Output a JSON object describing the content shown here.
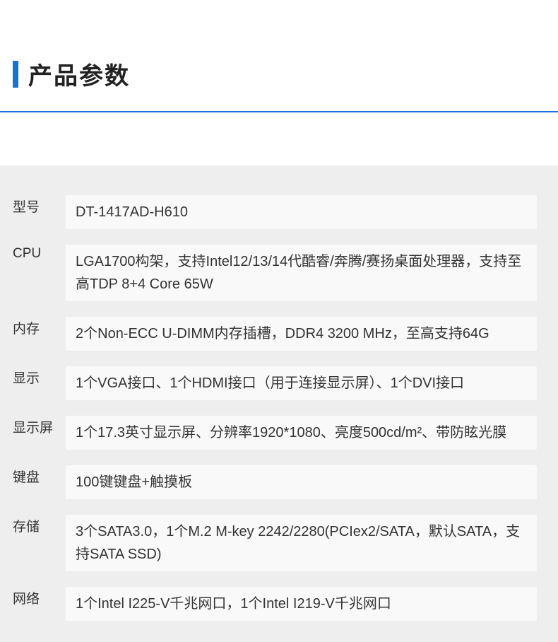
{
  "header": {
    "title": "产品参数",
    "accent_color": "#1a6fd9"
  },
  "specs": [
    {
      "label": "型号",
      "value": "DT-1417AD-H610"
    },
    {
      "label": "CPU",
      "value": "LGA1700构架，支持Intel12/13/14代酷睿/奔腾/赛扬桌面处理器，支持至高TDP 8+4 Core 65W"
    },
    {
      "label": "内存",
      "value": "2个Non-ECC U-DIMM内存插槽，DDR4 3200 MHz，至高支持64G"
    },
    {
      "label": "显示",
      "value": "1个VGA接口、1个HDMI接口（用于连接显示屏）、1个DVI接口"
    },
    {
      "label": "显示屏",
      "value": "1个17.3英寸显示屏、分辨率1920*1080、亮度500cd/m²、带防眩光膜"
    },
    {
      "label": "键盘",
      "value": "100键键盘+触摸板"
    },
    {
      "label": "存储",
      "value": "3个SATA3.0，1个M.2 M-key 2242/2280(PCIex2/SATA，默认SATA，支持SATA SSD)"
    },
    {
      "label": "网络",
      "value": "1个Intel I225-V千兆网口，1个Intel I219-V千兆网口"
    }
  ],
  "colors": {
    "page_bg": "#ffffff",
    "section_bg": "#eeeeee",
    "value_bg": "#f9f9f9",
    "text": "#333333",
    "accent": "#1a6fd9"
  }
}
